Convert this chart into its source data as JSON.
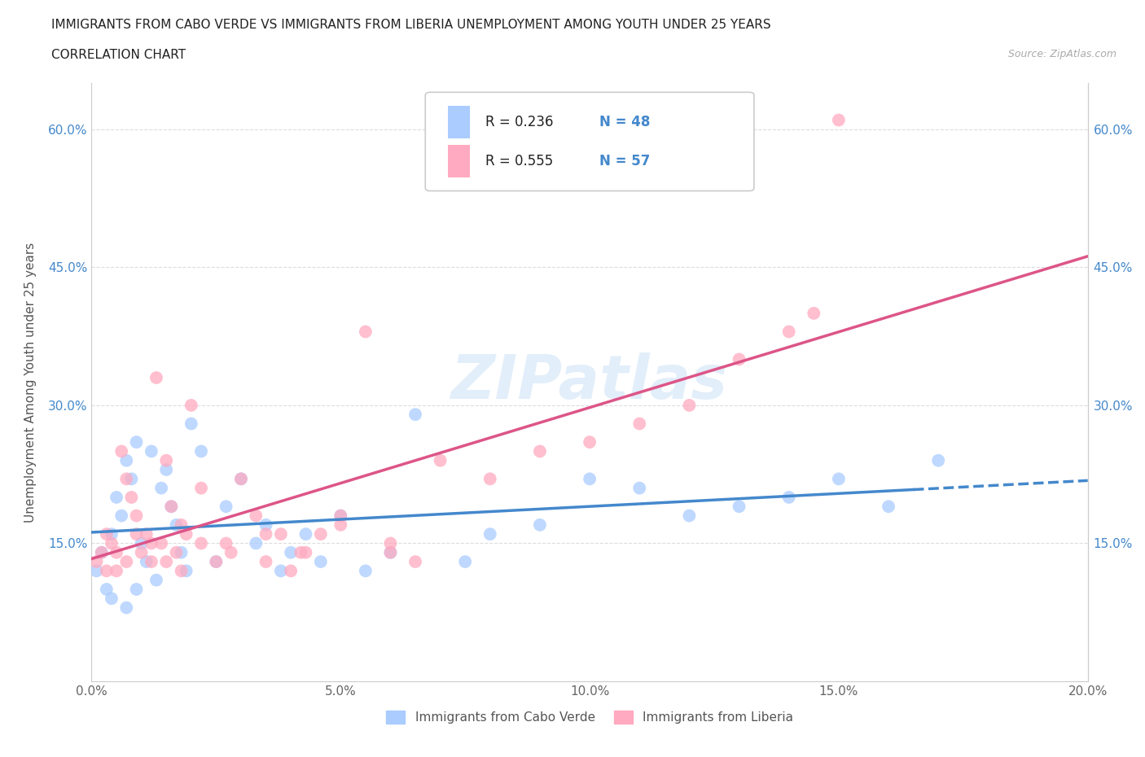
{
  "title": "IMMIGRANTS FROM CABO VERDE VS IMMIGRANTS FROM LIBERIA UNEMPLOYMENT AMONG YOUTH UNDER 25 YEARS",
  "subtitle": "CORRELATION CHART",
  "source": "Source: ZipAtlas.com",
  "ylabel": "Unemployment Among Youth under 25 years",
  "legend_bottom": [
    "Immigrants from Cabo Verde",
    "Immigrants from Liberia"
  ],
  "r_cabo": 0.236,
  "n_cabo": 48,
  "r_liberia": 0.555,
  "n_liberia": 57,
  "xlim": [
    0.0,
    0.2
  ],
  "ylim": [
    0.0,
    0.65
  ],
  "xticks": [
    0.0,
    0.05,
    0.1,
    0.15,
    0.2
  ],
  "yticks": [
    0.15,
    0.3,
    0.45,
    0.6
  ],
  "ytick_labels": [
    "15.0%",
    "30.0%",
    "45.0%",
    "60.0%"
  ],
  "xtick_labels": [
    "0.0%",
    "5.0%",
    "10.0%",
    "15.0%",
    "20.0%"
  ],
  "color_cabo": "#aaccff",
  "color_liberia": "#ffaac0",
  "line_color_cabo": "#4488cc",
  "line_color_liberia": "#dd5588",
  "watermark": "ZIPatlas",
  "cabo_x": [
    0.001,
    0.002,
    0.003,
    0.004,
    0.005,
    0.006,
    0.007,
    0.008,
    0.009,
    0.01,
    0.011,
    0.012,
    0.013,
    0.014,
    0.015,
    0.016,
    0.017,
    0.018,
    0.019,
    0.02,
    0.022,
    0.025,
    0.027,
    0.03,
    0.033,
    0.035,
    0.038,
    0.04,
    0.043,
    0.046,
    0.05,
    0.055,
    0.06,
    0.065,
    0.075,
    0.08,
    0.09,
    0.1,
    0.11,
    0.12,
    0.13,
    0.14,
    0.15,
    0.16,
    0.17,
    0.004,
    0.007,
    0.009
  ],
  "cabo_y": [
    0.12,
    0.14,
    0.1,
    0.16,
    0.2,
    0.18,
    0.24,
    0.22,
    0.26,
    0.15,
    0.13,
    0.25,
    0.11,
    0.21,
    0.23,
    0.19,
    0.17,
    0.14,
    0.12,
    0.28,
    0.25,
    0.13,
    0.19,
    0.22,
    0.15,
    0.17,
    0.12,
    0.14,
    0.16,
    0.13,
    0.18,
    0.12,
    0.14,
    0.29,
    0.13,
    0.16,
    0.17,
    0.22,
    0.21,
    0.18,
    0.19,
    0.2,
    0.22,
    0.19,
    0.24,
    0.09,
    0.08,
    0.1
  ],
  "liberia_x": [
    0.001,
    0.002,
    0.003,
    0.004,
    0.005,
    0.006,
    0.007,
    0.008,
    0.009,
    0.01,
    0.011,
    0.012,
    0.013,
    0.014,
    0.015,
    0.016,
    0.017,
    0.018,
    0.019,
    0.02,
    0.022,
    0.025,
    0.027,
    0.03,
    0.033,
    0.035,
    0.038,
    0.04,
    0.043,
    0.046,
    0.05,
    0.055,
    0.06,
    0.065,
    0.003,
    0.005,
    0.007,
    0.009,
    0.012,
    0.015,
    0.018,
    0.022,
    0.028,
    0.035,
    0.042,
    0.05,
    0.06,
    0.07,
    0.08,
    0.09,
    0.1,
    0.11,
    0.12,
    0.13,
    0.14,
    0.145,
    0.15
  ],
  "liberia_y": [
    0.13,
    0.14,
    0.16,
    0.15,
    0.12,
    0.25,
    0.22,
    0.2,
    0.18,
    0.14,
    0.16,
    0.13,
    0.33,
    0.15,
    0.24,
    0.19,
    0.14,
    0.12,
    0.16,
    0.3,
    0.21,
    0.13,
    0.15,
    0.22,
    0.18,
    0.13,
    0.16,
    0.12,
    0.14,
    0.16,
    0.18,
    0.38,
    0.14,
    0.13,
    0.12,
    0.14,
    0.13,
    0.16,
    0.15,
    0.13,
    0.17,
    0.15,
    0.14,
    0.16,
    0.14,
    0.17,
    0.15,
    0.24,
    0.22,
    0.25,
    0.26,
    0.28,
    0.3,
    0.35,
    0.38,
    0.4,
    0.61
  ]
}
